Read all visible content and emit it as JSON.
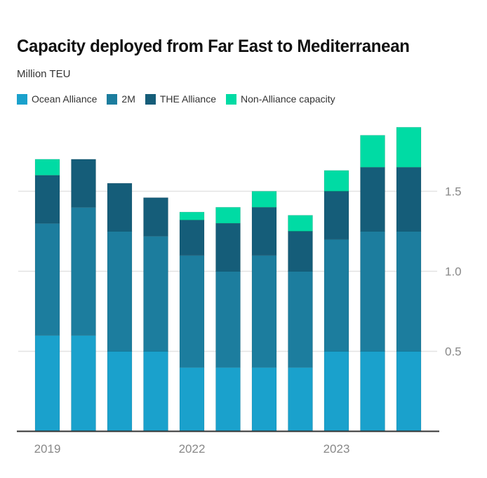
{
  "header": {
    "title": "Capacity deployed from Far East to Mediterranean",
    "subtitle": "Million TEU"
  },
  "legend": [
    {
      "label": "Ocean Alliance",
      "color": "#1aa1cc"
    },
    {
      "label": "2M",
      "color": "#1c7d9e"
    },
    {
      "label": "THE Alliance",
      "color": "#155d79"
    },
    {
      "label": "Non-Alliance capacity",
      "color": "#00dba4"
    }
  ],
  "chart_data": {
    "type": "bar",
    "stacked": true,
    "title": "Capacity deployed from Far East to Mediterranean",
    "subtitle": "Million TEU",
    "xlabel": "",
    "ylabel": "Million TEU",
    "ylim": [
      0,
      2.0
    ],
    "grid": true,
    "y_axis_side": "right",
    "legend_position": "top-left",
    "categories": [
      "2019",
      "",
      "",
      "",
      "2022",
      "",
      "",
      "",
      "2023",
      "",
      ""
    ],
    "x_tick_labels": [
      {
        "index": 0,
        "label": "2019"
      },
      {
        "index": 4,
        "label": "2022"
      },
      {
        "index": 8,
        "label": "2023"
      }
    ],
    "y_ticks": [
      {
        "value": 0.5,
        "label": "0.5"
      },
      {
        "value": 1.0,
        "label": "1.0"
      },
      {
        "value": 1.5,
        "label": "1.5"
      }
    ],
    "series": [
      {
        "name": "Ocean Alliance",
        "color": "#1aa1cc",
        "values": [
          0.6,
          0.6,
          0.5,
          0.5,
          0.4,
          0.4,
          0.4,
          0.4,
          0.5,
          0.5,
          0.5
        ]
      },
      {
        "name": "2M",
        "color": "#1c7d9e",
        "values": [
          0.7,
          0.8,
          0.75,
          0.72,
          0.7,
          0.6,
          0.7,
          0.6,
          0.7,
          0.75,
          0.75
        ]
      },
      {
        "name": "THE Alliance",
        "color": "#155d79",
        "values": [
          0.3,
          0.3,
          0.3,
          0.24,
          0.22,
          0.3,
          0.3,
          0.25,
          0.3,
          0.4,
          0.4
        ]
      },
      {
        "name": "Non-Alliance capacity",
        "color": "#00dba4",
        "values": [
          0.1,
          0.0,
          0.0,
          0.0,
          0.05,
          0.1,
          0.1,
          0.1,
          0.13,
          0.2,
          0.25
        ]
      }
    ]
  }
}
